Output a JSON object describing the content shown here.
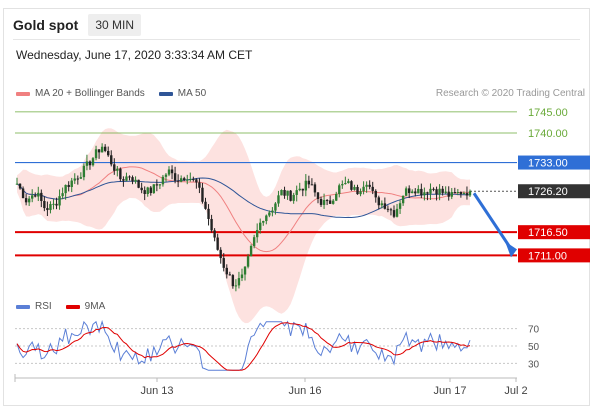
{
  "header": {
    "title": "Gold spot",
    "timeframe": "30 MIN"
  },
  "datetime": "Wednesday, June 17, 2020 3:33:34 AM CET",
  "legend": {
    "items": [
      {
        "label": "MA 20 + Bollinger Bands",
        "color": "#f08080"
      },
      {
        "label": "MA 50",
        "color": "#2f5597"
      }
    ],
    "credit": "Research © 2020 Trading Central"
  },
  "rsi_legend": {
    "items": [
      {
        "label": "RSI",
        "color": "#5b7fd6"
      },
      {
        "label": "9MA",
        "color": "#e00000"
      }
    ]
  },
  "chart_data": {
    "type": "candlestick",
    "price_range": [
      1700,
      1755
    ],
    "levels": [
      {
        "value": 1745.0,
        "label": "1745.00",
        "kind": "resistance",
        "color": "#6aaa3a"
      },
      {
        "value": 1740.0,
        "label": "1740.00",
        "kind": "resistance",
        "color": "#6aaa3a"
      },
      {
        "value": 1733.0,
        "label": "1733.00",
        "kind": "pivot",
        "color": "#2f6fd6"
      },
      {
        "value": 1726.2,
        "label": "1726.20",
        "kind": "last",
        "color": "#333333"
      },
      {
        "value": 1716.5,
        "label": "1716.50",
        "kind": "support",
        "color": "#e00000"
      },
      {
        "value": 1711.0,
        "label": "1711.00",
        "kind": "support",
        "color": "#e00000"
      }
    ],
    "close_path": [
      1728,
      1724,
      1726,
      1722,
      1723,
      1727,
      1729,
      1731,
      1734,
      1737,
      1733,
      1729,
      1730,
      1727,
      1726,
      1728,
      1731,
      1729,
      1730,
      1728,
      1722,
      1714,
      1708,
      1704,
      1706,
      1714,
      1720,
      1722,
      1726,
      1725,
      1727,
      1728,
      1724,
      1723,
      1727,
      1728,
      1726,
      1729,
      1724,
      1723,
      1721,
      1726,
      1727,
      1726,
      1727,
      1726,
      1725,
      1726,
      1726.2
    ],
    "projection": {
      "from": 1726.2,
      "to": 1711.0
    },
    "xaxis": {
      "labels": [
        "Jun 13",
        "Jun 16",
        "Jun 17",
        "Jul 2"
      ]
    },
    "rsi": {
      "levels": [
        70,
        50,
        30
      ],
      "range": [
        20,
        80
      ]
    }
  }
}
